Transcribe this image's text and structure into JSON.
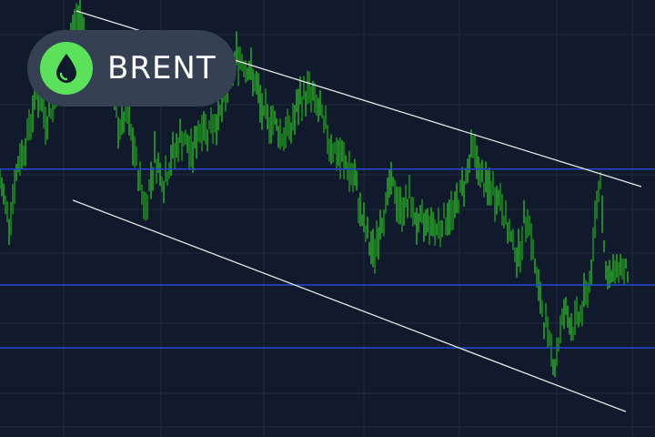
{
  "badge": {
    "label": "BRENT",
    "icon": "oil-drop-icon",
    "icon_color": "#5ce25a"
  },
  "colors": {
    "background": "#111a2c",
    "bars": "#2db52a",
    "levels": "#2447d6",
    "trendlines": "#e6e6e6",
    "grid": "#1f2a3d"
  },
  "chart_data": {
    "type": "bar",
    "title": "",
    "xlabel": "",
    "ylabel": "",
    "xlim": [
      0,
      72
    ],
    "ylim": [
      0,
      100
    ],
    "grid": true,
    "price_path": [
      [
        0,
        58.3
      ],
      [
        1,
        50
      ],
      [
        2,
        62.5
      ],
      [
        3,
        68.8
      ],
      [
        4,
        79.2
      ],
      [
        5,
        72.9
      ],
      [
        6,
        77.1
      ],
      [
        7,
        87.5
      ],
      [
        8,
        93.8
      ],
      [
        9,
        95.8
      ],
      [
        10,
        81.3
      ],
      [
        11,
        87.5
      ],
      [
        12,
        83.3
      ],
      [
        13,
        70.8
      ],
      [
        14,
        72.9
      ],
      [
        15,
        62.5
      ],
      [
        16,
        52.1
      ],
      [
        17,
        64.6
      ],
      [
        18,
        58.3
      ],
      [
        19,
        64.6
      ],
      [
        20,
        68.8
      ],
      [
        21,
        64.6
      ],
      [
        22,
        70.8
      ],
      [
        23,
        70.8
      ],
      [
        24,
        72.9
      ],
      [
        25,
        79.2
      ],
      [
        26,
        87.5
      ],
      [
        27,
        85.4
      ],
      [
        28,
        81.3
      ],
      [
        29,
        72.9
      ],
      [
        30,
        72.9
      ],
      [
        31,
        68.8
      ],
      [
        32,
        70.8
      ],
      [
        33,
        77.1
      ],
      [
        34,
        79.2
      ],
      [
        35,
        75
      ],
      [
        36,
        68.8
      ],
      [
        37,
        64.6
      ],
      [
        38,
        62.5
      ],
      [
        39,
        58.3
      ],
      [
        40,
        47.9
      ],
      [
        41,
        41.7
      ],
      [
        42,
        50
      ],
      [
        43,
        58.3
      ],
      [
        44,
        52.1
      ],
      [
        45,
        54.2
      ],
      [
        46,
        47.9
      ],
      [
        47,
        50
      ],
      [
        48,
        47.9
      ],
      [
        49,
        50
      ],
      [
        50,
        52.1
      ],
      [
        51,
        58.3
      ],
      [
        52,
        66.7
      ],
      [
        53,
        58.3
      ],
      [
        54,
        56.3
      ],
      [
        55,
        54.2
      ],
      [
        56,
        45.8
      ],
      [
        57,
        41.7
      ],
      [
        58,
        52.1
      ],
      [
        59,
        35.4
      ],
      [
        60,
        25
      ],
      [
        61,
        16.7
      ],
      [
        62,
        29.2
      ],
      [
        63,
        25
      ],
      [
        64,
        29.2
      ],
      [
        65,
        37.5
      ],
      [
        65.5,
        52.1
      ],
      [
        66,
        60.4
      ],
      [
        66.5,
        39.6
      ],
      [
        67,
        35.4
      ],
      [
        68,
        39.6
      ],
      [
        69,
        37.5
      ],
      [
        69.2,
        45.8
      ]
    ],
    "horizontal_levels": [
      61.3,
      34.8,
      20.4
    ],
    "trendlines": [
      {
        "from": [
          8.4,
          97.5
        ],
        "to": [
          70.5,
          57.3
        ]
      },
      {
        "from": [
          8,
          54.2
        ],
        "to": [
          68.8,
          5.8
        ]
      }
    ]
  }
}
